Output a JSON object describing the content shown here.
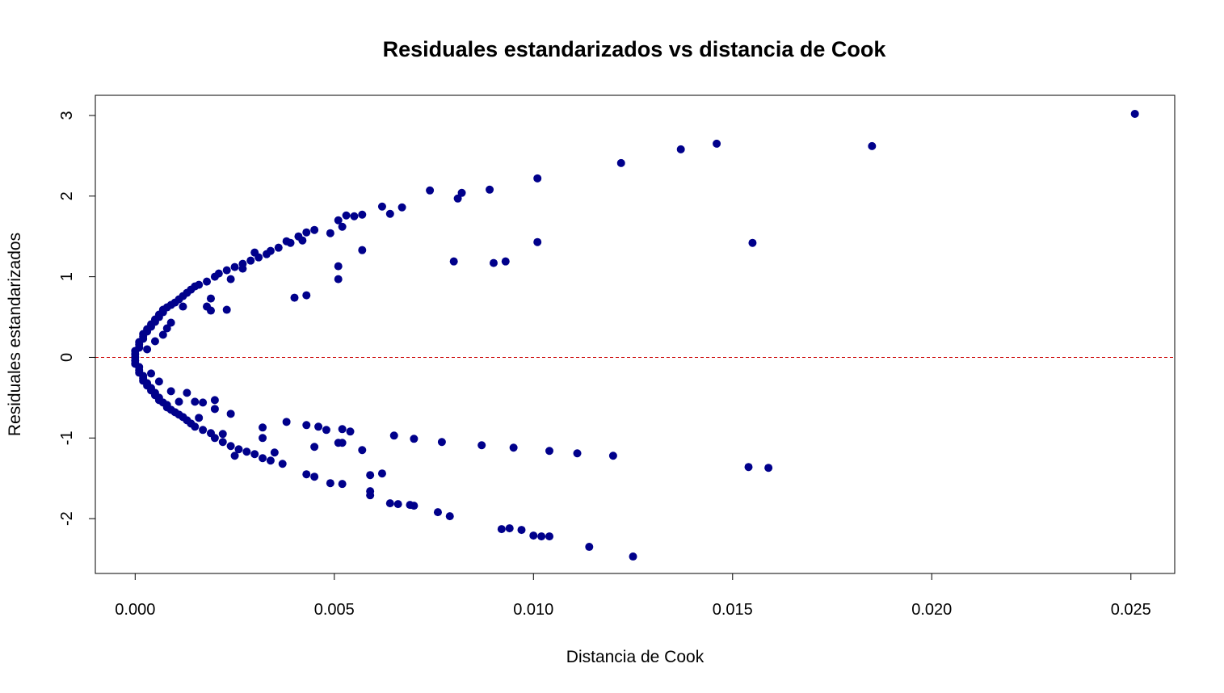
{
  "chart_data": {
    "type": "scatter",
    "title": "Residuales estandarizados vs distancia de Cook",
    "xlabel": "Distancia de Cook",
    "ylabel": "Residuales estandarizados",
    "xlim": [
      -0.001,
      0.0261
    ],
    "ylim": [
      -2.68,
      3.25
    ],
    "x_ticks": [
      0.0,
      0.005,
      0.01,
      0.015,
      0.02,
      0.025
    ],
    "x_tick_labels": [
      "0.000",
      "0.005",
      "0.010",
      "0.015",
      "0.020",
      "0.025"
    ],
    "y_ticks": [
      -2,
      -1,
      0,
      1,
      2,
      3
    ],
    "y_tick_labels": [
      "-2",
      "-1",
      "0",
      "1",
      "2",
      "3"
    ],
    "reference_line": {
      "y": 0,
      "style": "dashed",
      "color": "#cc0000"
    },
    "point_color": "#00008B",
    "grid": false,
    "series": [
      {
        "points": [
          [
            0.0,
            0.0
          ],
          [
            0.0,
            0.04
          ],
          [
            0.0,
            -0.04
          ],
          [
            0.0,
            0.08
          ],
          [
            0.0,
            -0.08
          ],
          [
            0.0001,
            0.12
          ],
          [
            0.0001,
            -0.12
          ],
          [
            0.0001,
            0.16
          ],
          [
            0.0001,
            -0.16
          ],
          [
            0.0001,
            0.19
          ],
          [
            0.0001,
            -0.19
          ],
          [
            0.0002,
            0.23
          ],
          [
            0.0002,
            -0.23
          ],
          [
            0.0002,
            0.26
          ],
          [
            0.0002,
            -0.26
          ],
          [
            0.0002,
            0.29
          ],
          [
            0.0002,
            -0.29
          ],
          [
            0.0003,
            0.32
          ],
          [
            0.0003,
            -0.32
          ],
          [
            0.0003,
            0.35
          ],
          [
            0.0003,
            -0.35
          ],
          [
            0.0004,
            0.38
          ],
          [
            0.0004,
            -0.38
          ],
          [
            0.0004,
            0.41
          ],
          [
            0.0004,
            -0.41
          ],
          [
            0.0005,
            0.44
          ],
          [
            0.0005,
            -0.44
          ],
          [
            0.0005,
            0.47
          ],
          [
            0.0005,
            -0.47
          ],
          [
            0.0006,
            0.5
          ],
          [
            0.0006,
            -0.5
          ],
          [
            0.0006,
            0.53
          ],
          [
            0.0006,
            -0.53
          ],
          [
            0.0007,
            0.56
          ],
          [
            0.0007,
            -0.56
          ],
          [
            0.0007,
            0.59
          ],
          [
            0.0008,
            -0.59
          ],
          [
            0.0008,
            0.62
          ],
          [
            0.0008,
            -0.62
          ],
          [
            0.0009,
            0.65
          ],
          [
            0.0009,
            -0.65
          ],
          [
            0.001,
            0.68
          ],
          [
            0.001,
            -0.68
          ],
          [
            0.0011,
            0.72
          ],
          [
            0.0011,
            -0.71
          ],
          [
            0.0012,
            0.76
          ],
          [
            0.0012,
            -0.74
          ],
          [
            0.0013,
            0.8
          ],
          [
            0.0013,
            -0.78
          ],
          [
            0.0014,
            0.84
          ],
          [
            0.0014,
            -0.82
          ],
          [
            0.0015,
            0.88
          ],
          [
            0.0015,
            -0.86
          ],
          [
            0.0016,
            0.9
          ],
          [
            0.0017,
            -0.9
          ],
          [
            0.0018,
            0.94
          ],
          [
            0.0019,
            -0.94
          ],
          [
            0.002,
            1.0
          ],
          [
            0.002,
            -1.0
          ],
          [
            0.0021,
            1.04
          ],
          [
            0.0022,
            -1.05
          ],
          [
            0.0023,
            1.08
          ],
          [
            0.0024,
            -1.1
          ],
          [
            0.0025,
            1.12
          ],
          [
            0.0026,
            -1.14
          ],
          [
            0.0027,
            1.16
          ],
          [
            0.0028,
            -1.17
          ],
          [
            0.0029,
            1.2
          ],
          [
            0.003,
            -1.2
          ],
          [
            0.0031,
            1.24
          ],
          [
            0.0032,
            -1.25
          ],
          [
            0.0033,
            1.28
          ],
          [
            0.0034,
            -1.28
          ],
          [
            0.0036,
            1.36
          ],
          [
            0.0037,
            -1.32
          ],
          [
            0.0039,
            1.42
          ],
          [
            0.0041,
            1.5
          ],
          [
            0.0043,
            1.55
          ],
          [
            0.0045,
            1.58
          ],
          [
            0.0049,
            1.54
          ],
          [
            0.0051,
            1.7
          ],
          [
            0.0052,
            1.62
          ],
          [
            0.0053,
            1.76
          ],
          [
            0.0055,
            1.75
          ],
          [
            0.0057,
            1.77
          ],
          [
            0.0062,
            1.87
          ],
          [
            0.0064,
            1.78
          ],
          [
            0.0067,
            1.86
          ],
          [
            0.0074,
            2.07
          ],
          [
            0.0081,
            1.97
          ],
          [
            0.0082,
            2.04
          ],
          [
            0.0089,
            2.08
          ],
          [
            0.0101,
            2.22
          ],
          [
            0.0122,
            2.41
          ],
          [
            0.0137,
            2.58
          ],
          [
            0.0146,
            2.65
          ],
          [
            0.0185,
            2.62
          ],
          [
            0.0251,
            3.02
          ],
          [
            0.0043,
            -1.45
          ],
          [
            0.0045,
            -1.48
          ],
          [
            0.0049,
            -1.56
          ],
          [
            0.0052,
            -1.57
          ],
          [
            0.0059,
            -1.66
          ],
          [
            0.0059,
            -1.71
          ],
          [
            0.0064,
            -1.81
          ],
          [
            0.0066,
            -1.82
          ],
          [
            0.0069,
            -1.83
          ],
          [
            0.007,
            -1.84
          ],
          [
            0.0076,
            -1.92
          ],
          [
            0.0079,
            -1.97
          ],
          [
            0.0092,
            -2.13
          ],
          [
            0.0094,
            -2.12
          ],
          [
            0.0097,
            -2.14
          ],
          [
            0.01,
            -2.21
          ],
          [
            0.0102,
            -2.22
          ],
          [
            0.0104,
            -2.22
          ],
          [
            0.0114,
            -2.35
          ],
          [
            0.0125,
            -2.47
          ],
          [
            0.0059,
            -1.46
          ],
          [
            0.0062,
            -1.44
          ],
          [
            0.0008,
            0.36
          ],
          [
            0.0009,
            0.43
          ],
          [
            0.0012,
            0.63
          ],
          [
            0.0018,
            0.63
          ],
          [
            0.0019,
            0.58
          ],
          [
            0.0019,
            0.73
          ],
          [
            0.0023,
            0.59
          ],
          [
            0.0024,
            0.97
          ],
          [
            0.004,
            0.74
          ],
          [
            0.0043,
            0.77
          ],
          [
            0.0051,
            0.97
          ],
          [
            0.0051,
            1.13
          ],
          [
            0.0057,
            1.33
          ],
          [
            0.008,
            1.19
          ],
          [
            0.009,
            1.17
          ],
          [
            0.0093,
            1.19
          ],
          [
            0.0101,
            1.43
          ],
          [
            0.0155,
            1.42
          ],
          [
            0.0013,
            -0.44
          ],
          [
            0.0015,
            -0.55
          ],
          [
            0.0017,
            -0.56
          ],
          [
            0.002,
            -0.53
          ],
          [
            0.002,
            -0.64
          ],
          [
            0.0024,
            -0.7
          ],
          [
            0.0032,
            -0.87
          ],
          [
            0.0038,
            -0.8
          ],
          [
            0.0043,
            -0.84
          ],
          [
            0.0046,
            -0.86
          ],
          [
            0.0048,
            -0.9
          ],
          [
            0.0052,
            -0.89
          ],
          [
            0.0054,
            -0.92
          ],
          [
            0.0045,
            -1.11
          ],
          [
            0.0051,
            -1.06
          ],
          [
            0.0052,
            -1.06
          ],
          [
            0.0057,
            -1.15
          ],
          [
            0.0065,
            -0.97
          ],
          [
            0.007,
            -1.01
          ],
          [
            0.0077,
            -1.05
          ],
          [
            0.0087,
            -1.09
          ],
          [
            0.0095,
            -1.12
          ],
          [
            0.0104,
            -1.16
          ],
          [
            0.0111,
            -1.19
          ],
          [
            0.012,
            -1.22
          ],
          [
            0.0154,
            -1.36
          ],
          [
            0.0159,
            -1.37
          ],
          [
            0.0003,
            0.1
          ],
          [
            0.0005,
            0.2
          ],
          [
            0.0007,
            0.28
          ],
          [
            0.0004,
            -0.2
          ],
          [
            0.0006,
            -0.3
          ],
          [
            0.0009,
            -0.42
          ],
          [
            0.0011,
            -0.55
          ],
          [
            0.0016,
            -0.75
          ],
          [
            0.0022,
            -0.95
          ],
          [
            0.0027,
            1.1
          ],
          [
            0.003,
            1.3
          ],
          [
            0.0034,
            1.32
          ],
          [
            0.0038,
            1.44
          ],
          [
            0.0042,
            1.45
          ],
          [
            0.0032,
            -1.0
          ],
          [
            0.0035,
            -1.18
          ],
          [
            0.0025,
            -1.22
          ]
        ]
      }
    ]
  }
}
